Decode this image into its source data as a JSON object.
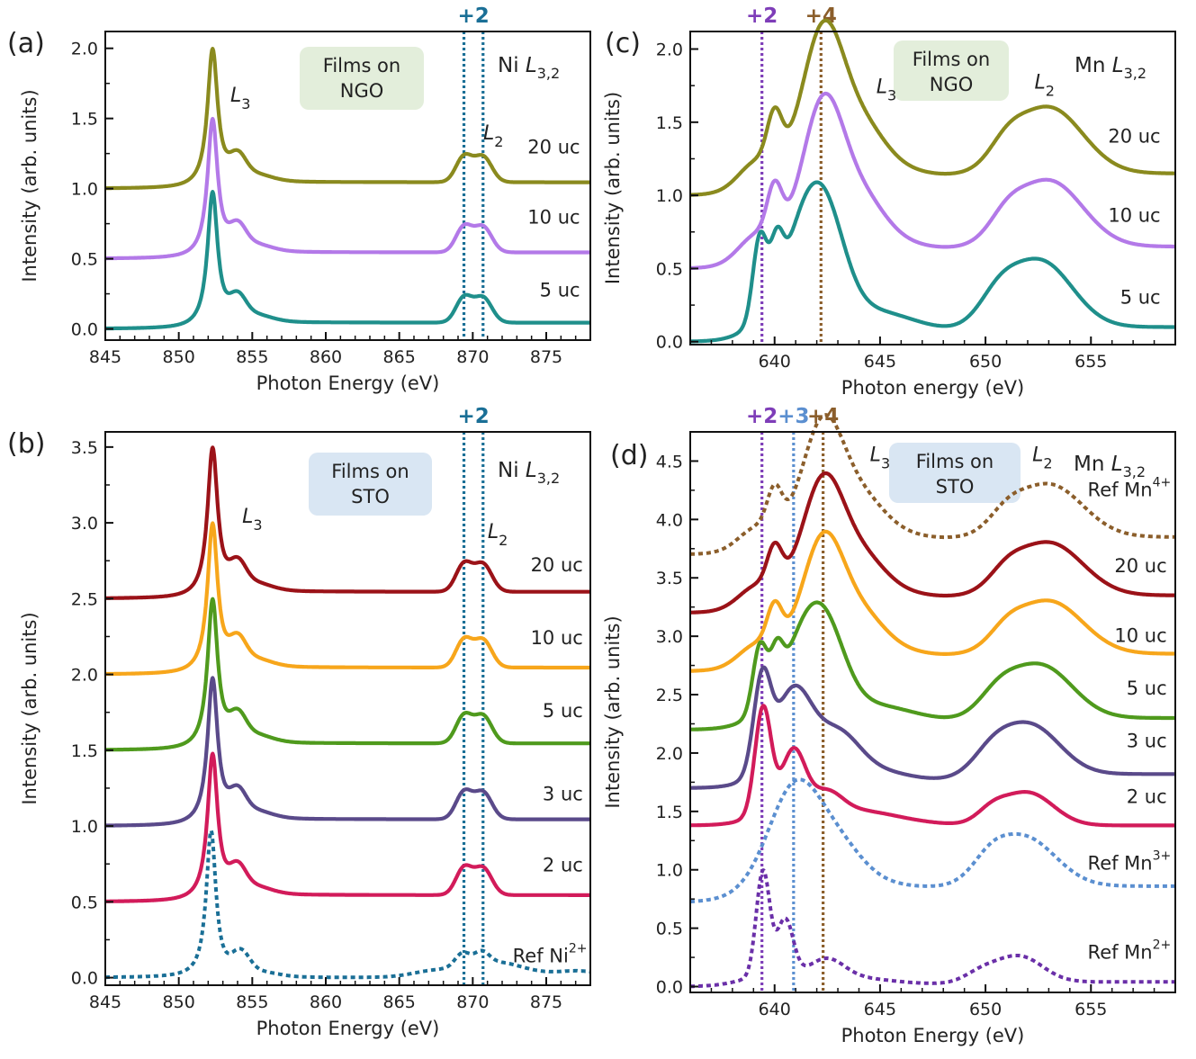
{
  "chart_data": [
    {
      "id": "a",
      "type": "line",
      "panel_label": "(a)",
      "edge": "Ni L3,2",
      "box_label_line1": "Films on",
      "box_label_line2": "NGO",
      "box_color": "#e3eedb",
      "xlabel": "Photon Energy (eV)",
      "ylabel": "Intensity (arb. units)",
      "xlim": [
        845,
        878
      ],
      "ylim": [
        -0.08,
        2.12
      ],
      "xticks": [
        845,
        850,
        855,
        860,
        865,
        870,
        875
      ],
      "yticks": [
        0.0,
        0.5,
        1.0,
        1.5,
        2.0
      ],
      "ytick_labels": [
        "0.0",
        "0.5",
        "1.0",
        "1.5",
        "2.0"
      ],
      "ox_lines": [
        {
          "label": "+2",
          "x": [
            869.4,
            870.7
          ],
          "color": "#1a6f96"
        }
      ],
      "peak_labels": [
        {
          "text": "L3",
          "x": 854.2,
          "y": 1.62
        },
        {
          "text": "L2",
          "x": 871.4,
          "y": 1.35
        }
      ],
      "series": [
        {
          "name": "20 uc",
          "kind": "Ni",
          "offset": 1.0,
          "scale": 1.0,
          "color": "#8a8a1e",
          "dashed": false,
          "label_x": 877.3,
          "label_y": 1.25
        },
        {
          "name": "10 uc",
          "kind": "Ni",
          "offset": 0.5,
          "scale": 1.0,
          "color": "#b379e8",
          "dashed": false,
          "label_x": 877.3,
          "label_y": 0.75
        },
        {
          "name": "5 uc",
          "kind": "Ni",
          "offset": 0.0,
          "scale": 0.98,
          "color": "#1f8f8b",
          "dashed": false,
          "label_x": 877.3,
          "label_y": 0.23
        }
      ]
    },
    {
      "id": "b",
      "type": "line",
      "panel_label": "(b)",
      "edge": "Ni L3,2",
      "box_label_line1": "Films on",
      "box_label_line2": "STO",
      "box_color": "#d9e6f3",
      "xlabel": "Photon Energy (eV)",
      "ylabel": "Intensity (arb. units)",
      "xlim": [
        845,
        878
      ],
      "ylim": [
        -0.05,
        3.6
      ],
      "xticks": [
        845,
        850,
        855,
        860,
        865,
        870,
        875
      ],
      "yticks": [
        0.0,
        0.5,
        1.0,
        1.5,
        2.0,
        2.5,
        3.0,
        3.5
      ],
      "ytick_labels": [
        "0.0",
        "0.5",
        "1.0",
        "1.5",
        "2.0",
        "2.5",
        "3.0",
        "3.5"
      ],
      "ox_lines": [
        {
          "label": "+2",
          "x": [
            869.4,
            870.7
          ],
          "color": "#1a6f96"
        }
      ],
      "peak_labels": [
        {
          "text": "L3",
          "x": 855.0,
          "y": 3.0
        },
        {
          "text": "L2",
          "x": 871.7,
          "y": 2.9
        }
      ],
      "series": [
        {
          "name": "20 uc",
          "kind": "Ni",
          "offset": 2.5,
          "scale": 1.0,
          "color": "#9b1218",
          "dashed": false,
          "label_x": 877.5,
          "label_y": 2.68
        },
        {
          "name": "10 uc",
          "kind": "Ni",
          "offset": 2.0,
          "scale": 1.0,
          "color": "#f7a61b",
          "dashed": false,
          "label_x": 877.5,
          "label_y": 2.2
        },
        {
          "name": "5 uc",
          "kind": "Ni",
          "offset": 1.5,
          "scale": 1.0,
          "color": "#4f9a1d",
          "dashed": false,
          "label_x": 877.5,
          "label_y": 1.72
        },
        {
          "name": "3 uc",
          "kind": "Ni",
          "offset": 1.0,
          "scale": 0.98,
          "color": "#5a4a8a",
          "dashed": false,
          "label_x": 877.5,
          "label_y": 1.17
        },
        {
          "name": "2 uc",
          "kind": "Ni",
          "offset": 0.5,
          "scale": 0.98,
          "color": "#d21b5a",
          "dashed": false,
          "label_x": 877.5,
          "label_y": 0.7
        },
        {
          "name": "Ref Ni",
          "sup": "2+",
          "kind": "NiRef",
          "offset": 0.0,
          "scale": 0.98,
          "color": "#1a6f96",
          "dashed": true,
          "label_x": 877.5,
          "label_y": 0.1
        }
      ]
    },
    {
      "id": "c",
      "type": "line",
      "panel_label": "(c)",
      "edge": "Mn L3,2",
      "box_label_line1": "Films on",
      "box_label_line2": "NGO",
      "box_color": "#e3eedb",
      "xlabel": "Photon energy (eV)",
      "ylabel": "Intensity (arb. units)",
      "xlim": [
        636,
        659
      ],
      "ylim": [
        -0.02,
        2.12
      ],
      "xticks": [
        640,
        645,
        650,
        655
      ],
      "yticks": [
        0.0,
        0.5,
        1.0,
        1.5,
        2.0
      ],
      "ytick_labels": [
        "0.0",
        "0.5",
        "1.0",
        "1.5",
        "2.0"
      ],
      "ox_lines": [
        {
          "label": "+2",
          "x": [
            639.4
          ],
          "color": "#7e3db8"
        },
        {
          "label": "+4",
          "x": [
            642.2
          ],
          "color": "#8b5e2b"
        }
      ],
      "peak_labels": [
        {
          "text": "L3",
          "x": 645.3,
          "y": 1.7
        },
        {
          "text": "L2",
          "x": 652.8,
          "y": 1.73
        }
      ],
      "series": [
        {
          "name": "20 uc",
          "kind": "Mn4",
          "offset": 1.0,
          "scale": 1.0,
          "color": "#8a8a1e",
          "dashed": false,
          "label_x": 658.3,
          "label_y": 1.36
        },
        {
          "name": "10 uc",
          "kind": "Mn4",
          "offset": 0.5,
          "scale": 1.0,
          "color": "#b379e8",
          "dashed": false,
          "label_x": 658.3,
          "label_y": 0.82
        },
        {
          "name": "5 uc",
          "kind": "Mn3",
          "offset": 0.0,
          "scale": 1.0,
          "color": "#1f8f8b",
          "dashed": false,
          "label_x": 658.3,
          "label_y": 0.26
        }
      ]
    },
    {
      "id": "d",
      "type": "line",
      "panel_label": "(d)",
      "edge": "Mn L3,2",
      "box_label_line1": "Films on",
      "box_label_line2": "STO",
      "box_color": "#d9e6f3",
      "xlabel": "Photon Energy (eV)",
      "ylabel": "Intensity (arb. units)",
      "xlim": [
        636,
        659
      ],
      "ylim": [
        -0.05,
        4.75
      ],
      "xticks": [
        640,
        645,
        650,
        655
      ],
      "yticks": [
        0.0,
        0.5,
        1.0,
        1.5,
        2.0,
        2.5,
        3.0,
        3.5,
        4.0,
        4.5
      ],
      "ytick_labels": [
        "0.0",
        "0.5",
        "1.0",
        "1.5",
        "2.0",
        "2.5",
        "3.0",
        "3.5",
        "4.0",
        "4.5"
      ],
      "ox_lines": [
        {
          "label": "+2",
          "x": [
            639.4
          ],
          "color": "#7e3db8"
        },
        {
          "label": "+3",
          "x": [
            640.9
          ],
          "color": "#5b8fd0"
        },
        {
          "label": "+4",
          "x": [
            642.3
          ],
          "color": "#8b5e2b"
        }
      ],
      "peak_labels": [
        {
          "text": "L3",
          "x": 645.0,
          "y": 4.5
        },
        {
          "text": "L2",
          "x": 652.7,
          "y": 4.5
        }
      ],
      "series": [
        {
          "name": "Ref Mn",
          "sup": "4+",
          "kind": "Mn4",
          "offset": 3.7,
          "scale": 1.0,
          "color": "#8b5e2b",
          "dashed": true,
          "label_x": 658.6,
          "label_y": 4.2
        },
        {
          "name": "20 uc",
          "kind": "Mn4",
          "offset": 3.2,
          "scale": 1.0,
          "color": "#9b1218",
          "dashed": false,
          "label_x": 658.6,
          "label_y": 3.55
        },
        {
          "name": "10 uc",
          "kind": "Mn4",
          "offset": 2.7,
          "scale": 1.0,
          "color": "#f7a61b",
          "dashed": false,
          "label_x": 658.6,
          "label_y": 2.95
        },
        {
          "name": "5 uc",
          "kind": "Mn3",
          "offset": 2.2,
          "scale": 1.0,
          "color": "#4f9a1d",
          "dashed": false,
          "label_x": 658.6,
          "label_y": 2.5
        },
        {
          "name": "3 uc",
          "kind": "Mn23",
          "offset": 1.7,
          "scale": 1.0,
          "color": "#5a4a8a",
          "dashed": false,
          "label_x": 658.6,
          "label_y": 2.05
        },
        {
          "name": "2 uc",
          "kind": "Mn2b",
          "offset": 1.38,
          "scale": 1.0,
          "color": "#d21b5a",
          "dashed": false,
          "label_x": 658.6,
          "label_y": 1.57
        },
        {
          "name": "Ref Mn",
          "sup": "3+",
          "kind": "Mn3ref",
          "offset": 0.72,
          "scale": 1.0,
          "color": "#5b8fd0",
          "dashed": true,
          "label_x": 658.6,
          "label_y": 1.0
        },
        {
          "name": "Ref Mn",
          "sup": "2+",
          "kind": "Mn2ref",
          "offset": 0.0,
          "scale": 1.0,
          "color": "#6a2fa8",
          "dashed": true,
          "label_x": 658.6,
          "label_y": 0.24
        }
      ]
    }
  ]
}
